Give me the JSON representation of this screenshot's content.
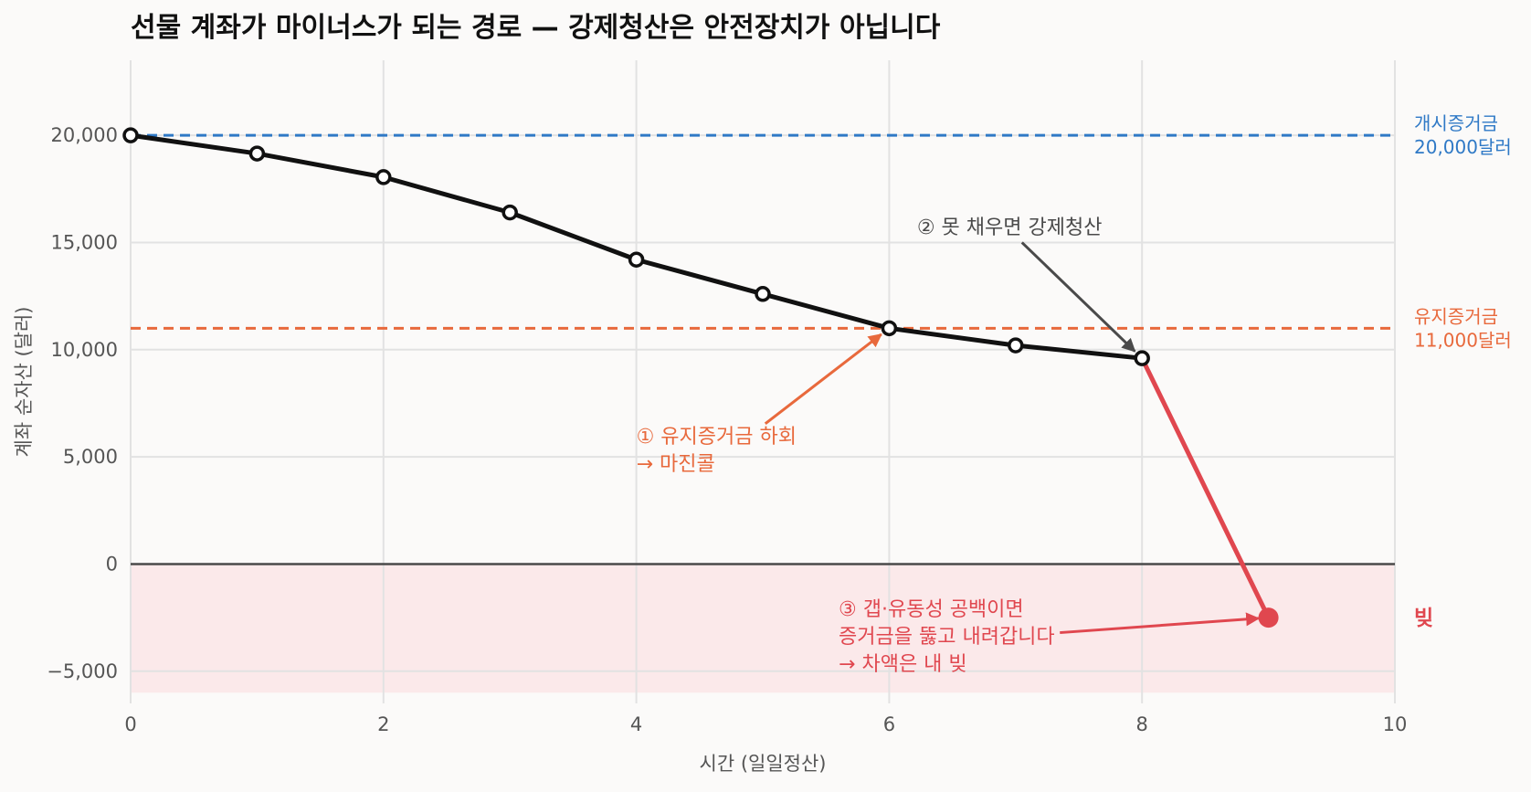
{
  "chart_data": {
    "type": "line",
    "title": "선물 계좌가 마이너스가 되는 경로 — 강제청산은 안전장치가 아닙니다",
    "xlabel": "시간 (일일정산)",
    "ylabel": "계좌 순자산 (달러)",
    "xlim": [
      0,
      10
    ],
    "ylim": [
      -6500,
      23500
    ],
    "x_ticks": [
      0,
      2,
      4,
      6,
      8,
      10
    ],
    "y_ticks": [
      -5000,
      0,
      5000,
      10000,
      15000,
      20000
    ],
    "x_tick_labels": [
      "0",
      "2",
      "4",
      "6",
      "8",
      "10"
    ],
    "y_tick_labels": [
      "−5,000",
      "0",
      "5,000",
      "10,000",
      "15,000",
      "20,000"
    ],
    "grid": true,
    "series": [
      {
        "x": [
          0,
          1,
          2,
          3,
          4,
          5,
          6,
          7,
          8
        ],
        "values": [
          20000,
          19150,
          18050,
          16400,
          14200,
          12600,
          11000,
          10200,
          9600
        ],
        "color": "#111111"
      },
      {
        "x": [
          8,
          9
        ],
        "values": [
          9600,
          -2500
        ],
        "color": "#e0474f"
      }
    ],
    "reference_lines": [
      {
        "y": 20000,
        "label_lines": [
          "개시증거금",
          "20,000달러"
        ],
        "color": "#2f79c6"
      },
      {
        "y": 11000,
        "label_lines": [
          "유지증거금",
          "11,000달러"
        ],
        "color": "#e8693c"
      }
    ],
    "debt_region": {
      "y_from": 0,
      "y_to": -6000,
      "label": "빚",
      "color": "#e0474f",
      "fill": "#fbe9ea"
    },
    "annotations": [
      {
        "id": "ann1",
        "lines": [
          "① 유지증거금 하회",
          "→ 마진콜"
        ],
        "color": "#e8693c",
        "target": [
          6,
          11000
        ]
      },
      {
        "id": "ann2",
        "lines": [
          "② 못 채우면 강제청산"
        ],
        "color": "#4a4a4a",
        "target": [
          8,
          9600
        ]
      },
      {
        "id": "ann3",
        "lines": [
          "③ 갭·유동성 공백이면",
          "증거금을 뚫고 내려갑니다",
          "→ 차액은 내 빚"
        ],
        "color": "#e0474f",
        "target": [
          9,
          -2500
        ]
      }
    ]
  }
}
